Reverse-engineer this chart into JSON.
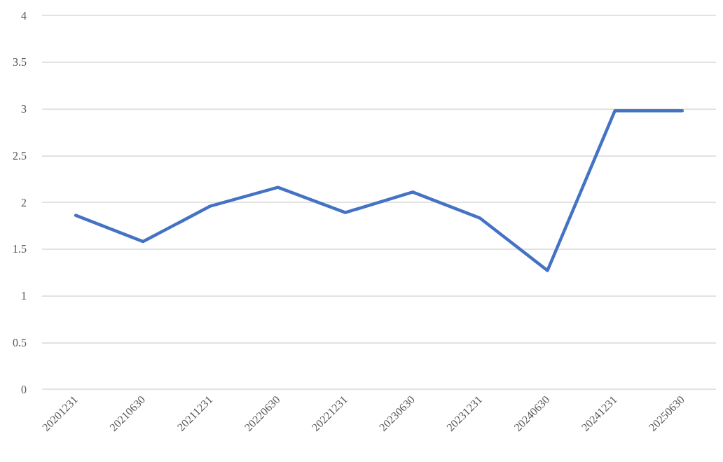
{
  "chart_data": {
    "type": "line",
    "categories": [
      "20201231",
      "20210630",
      "20211231",
      "20220630",
      "20221231",
      "20230630",
      "20231231",
      "20240630",
      "20241231",
      "20250630"
    ],
    "values": [
      1.86,
      1.58,
      1.96,
      2.16,
      1.89,
      2.11,
      1.83,
      1.27,
      2.98,
      2.98
    ],
    "color": "#4472c4",
    "ylim": [
      0,
      4
    ],
    "yticks": [
      0,
      0.5,
      1,
      1.5,
      2,
      2.5,
      3,
      3.5,
      4
    ],
    "grid": "y",
    "marker": "none",
    "line_style": "solid"
  }
}
